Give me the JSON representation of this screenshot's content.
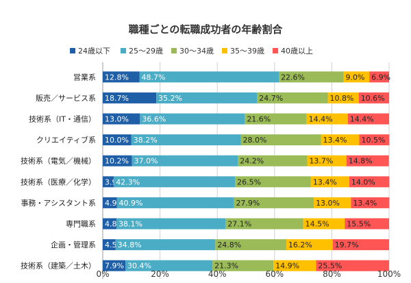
{
  "chart_data": {
    "type": "bar",
    "orientation": "horizontal",
    "stacked": true,
    "title": "職種ごとの転職成功者の年齢割合",
    "categories": [
      "営業系",
      "販売／サービス系",
      "技術系（IT・通信）",
      "クリエイティブ系",
      "技術系（電気／機械）",
      "技術系（医療／化学）",
      "事務・アシスタント系",
      "専門職系",
      "企画・管理系",
      "技術系（建築／土木）"
    ],
    "series": [
      {
        "name": "24歳以下",
        "color": "#1f5fa8",
        "values": [
          12.8,
          18.7,
          13.0,
          10.0,
          10.2,
          3.9,
          4.9,
          4.8,
          4.5,
          7.9
        ],
        "labels": [
          "12.8%",
          "18.7%",
          "13.0%",
          "10.0%",
          "10.2%",
          "3.9%",
          "4.9%",
          "4.8%",
          "4.5%",
          "7.9%"
        ]
      },
      {
        "name": "25～29歳",
        "color": "#4bacc6",
        "values": [
          48.7,
          35.2,
          36.6,
          38.2,
          37.0,
          42.3,
          40.9,
          38.1,
          34.8,
          30.4
        ],
        "labels": [
          "48.7%",
          "35.2%",
          "36.6%",
          "38.2%",
          "37.0%",
          "42.3%",
          "40.9%",
          "38.1%",
          "34.8%",
          "30.4%"
        ]
      },
      {
        "name": "30～34歳",
        "color": "#9bbb59",
        "values": [
          22.6,
          24.7,
          21.6,
          28.0,
          24.2,
          26.5,
          27.9,
          27.1,
          24.8,
          21.3
        ],
        "labels": [
          "22.6%",
          "24.7%",
          "21.6%",
          "28.0%",
          "24.2%",
          "26.5%",
          "27.9%",
          "27.1%",
          "24.8%",
          "21.3%"
        ]
      },
      {
        "name": "35～39歳",
        "color": "#ffc000",
        "values": [
          9.0,
          10.8,
          14.4,
          13.4,
          13.7,
          13.4,
          13.0,
          14.5,
          16.2,
          14.9
        ],
        "labels": [
          "9.0%",
          "10.8%",
          "14.4%",
          "13.4%",
          "13.7%",
          "13.4%",
          "13.0%",
          "14.5%",
          "16.2%",
          "14.9%"
        ]
      },
      {
        "name": "40歳以上",
        "color": "#ff5555",
        "values": [
          6.9,
          10.6,
          14.4,
          10.5,
          14.8,
          14.0,
          13.4,
          15.5,
          19.7,
          25.5
        ],
        "labels": [
          "6.9%",
          "10.6%",
          "14.4%",
          "10.5%",
          "14.8%",
          "14.0%",
          "13.4%",
          "15.5%",
          "19.7%",
          "25.5%"
        ]
      }
    ],
    "xlim": [
      0,
      100
    ],
    "x_ticks": [
      0,
      20,
      40,
      60,
      80,
      100
    ],
    "x_tick_labels": [
      "0%",
      "20%",
      "40%",
      "60%",
      "80%",
      "100%"
    ],
    "grid": true,
    "legend_position": "top"
  }
}
